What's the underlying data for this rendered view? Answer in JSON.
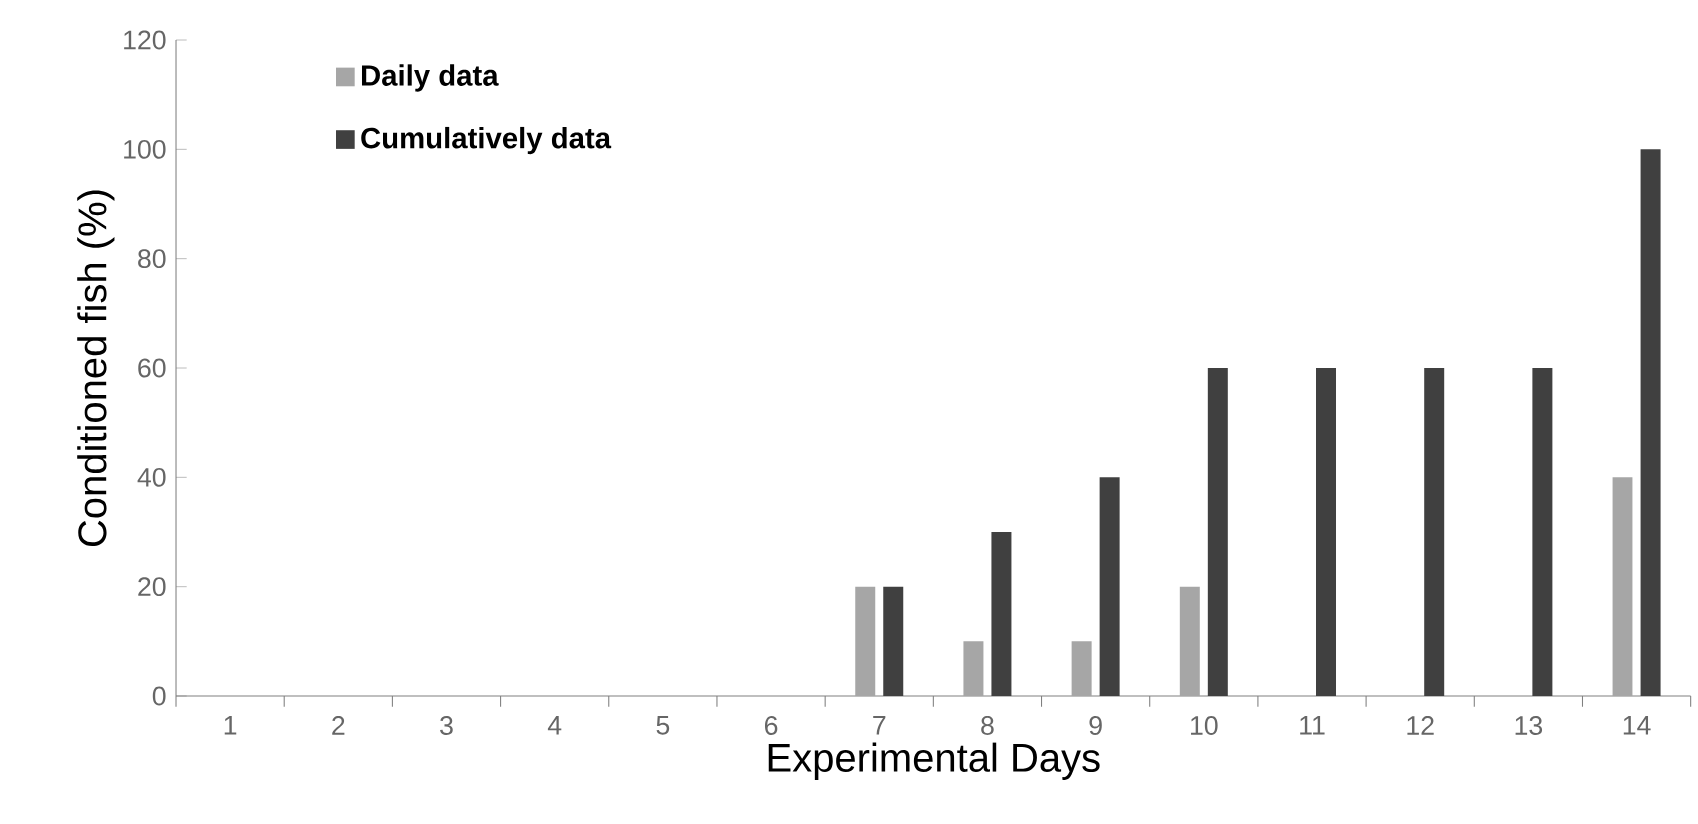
{
  "chart_data": {
    "type": "bar",
    "xlabel": "Experimental Days",
    "ylabel": "Conditioned fish (%)",
    "categories": [
      "1",
      "2",
      "3",
      "4",
      "5",
      "6",
      "7",
      "8",
      "9",
      "10",
      "11",
      "12",
      "13",
      "14"
    ],
    "series": [
      {
        "name": "Daily data",
        "color": "#a6a6a6",
        "values": [
          0,
          0,
          0,
          0,
          0,
          0,
          20,
          10,
          10,
          20,
          0,
          0,
          0,
          40
        ]
      },
      {
        "name": "Cumulatively data",
        "color": "#404040",
        "values": [
          0,
          0,
          0,
          0,
          0,
          0,
          20,
          30,
          40,
          60,
          60,
          60,
          60,
          100
        ]
      }
    ],
    "ylim": [
      0,
      120
    ],
    "yticks": [
      0,
      20,
      40,
      60,
      80,
      100,
      120
    ],
    "grid": false,
    "legend": "top left"
  }
}
